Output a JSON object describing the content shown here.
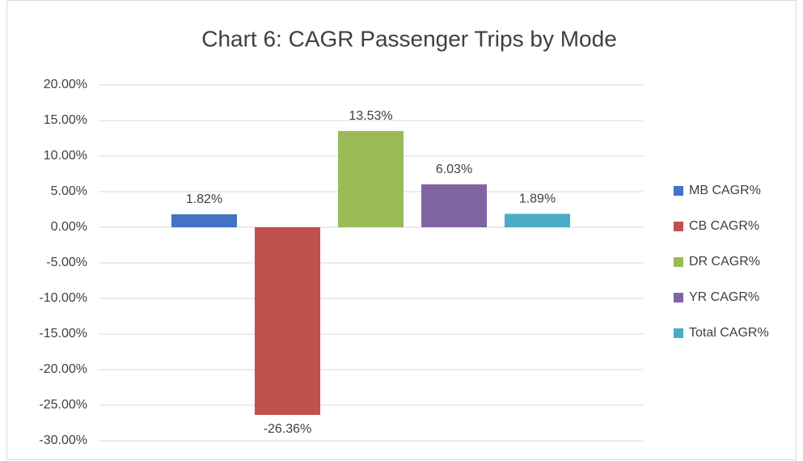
{
  "chart_data": {
    "type": "bar",
    "title": "Chart 6: CAGR Passenger Trips by Mode",
    "categories": [
      null
    ],
    "series": [
      {
        "name": "MB CAGR%",
        "color": "#4472c4",
        "values": [
          1.82
        ],
        "value_labels": [
          "1.82%"
        ]
      },
      {
        "name": "CB CAGR%",
        "color": "#c0504d",
        "values": [
          -26.36
        ],
        "value_labels": [
          "-26.36%"
        ]
      },
      {
        "name": "DR CAGR%",
        "color": "#9bbb59",
        "values": [
          13.53
        ],
        "value_labels": [
          "13.53%"
        ]
      },
      {
        "name": "YR CAGR%",
        "color": "#8064a2",
        "values": [
          6.03
        ],
        "value_labels": [
          "6.03%"
        ]
      },
      {
        "name": "Total CAGR%",
        "color": "#4bacc6",
        "values": [
          1.89
        ],
        "value_labels": [
          "1.89%"
        ]
      }
    ],
    "ylim": [
      -30,
      20
    ],
    "yticks": [
      {
        "value": -30,
        "label": "-30.00%"
      },
      {
        "value": -25,
        "label": "-25.00%"
      },
      {
        "value": -20,
        "label": "-20.00%"
      },
      {
        "value": -15,
        "label": "-15.00%"
      },
      {
        "value": -10,
        "label": "-10.00%"
      },
      {
        "value": -5,
        "label": "-5.00%"
      },
      {
        "value": 0,
        "label": "0.00%"
      },
      {
        "value": 5,
        "label": "5.00%"
      },
      {
        "value": 10,
        "label": "10.00%"
      },
      {
        "value": 15,
        "label": "15.00%"
      },
      {
        "value": 20,
        "label": "20.00%"
      }
    ],
    "grid": true,
    "legend": "right"
  }
}
